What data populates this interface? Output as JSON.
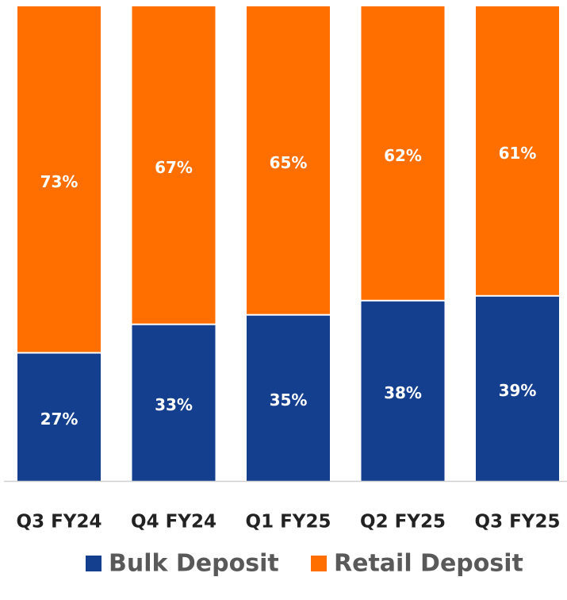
{
  "chart_data": {
    "type": "bar",
    "stacked": true,
    "categories": [
      "Q3 FY24",
      "Q4 FY24",
      "Q1 FY25",
      "Q2 FY25",
      "Q3 FY25"
    ],
    "series": [
      {
        "name": "Bulk Deposit",
        "color": "#143f8f",
        "values": [
          27,
          33,
          35,
          38,
          39
        ],
        "value_labels": [
          "27%",
          "33%",
          "35%",
          "38%",
          "39%"
        ]
      },
      {
        "name": "Retail Deposit",
        "color": "#ff6f00",
        "values": [
          73,
          67,
          65,
          62,
          61
        ],
        "value_labels": [
          "73%",
          "67%",
          "65%",
          "62%",
          "61%"
        ]
      }
    ],
    "ylim": [
      0,
      100
    ],
    "legend": "bottom"
  }
}
